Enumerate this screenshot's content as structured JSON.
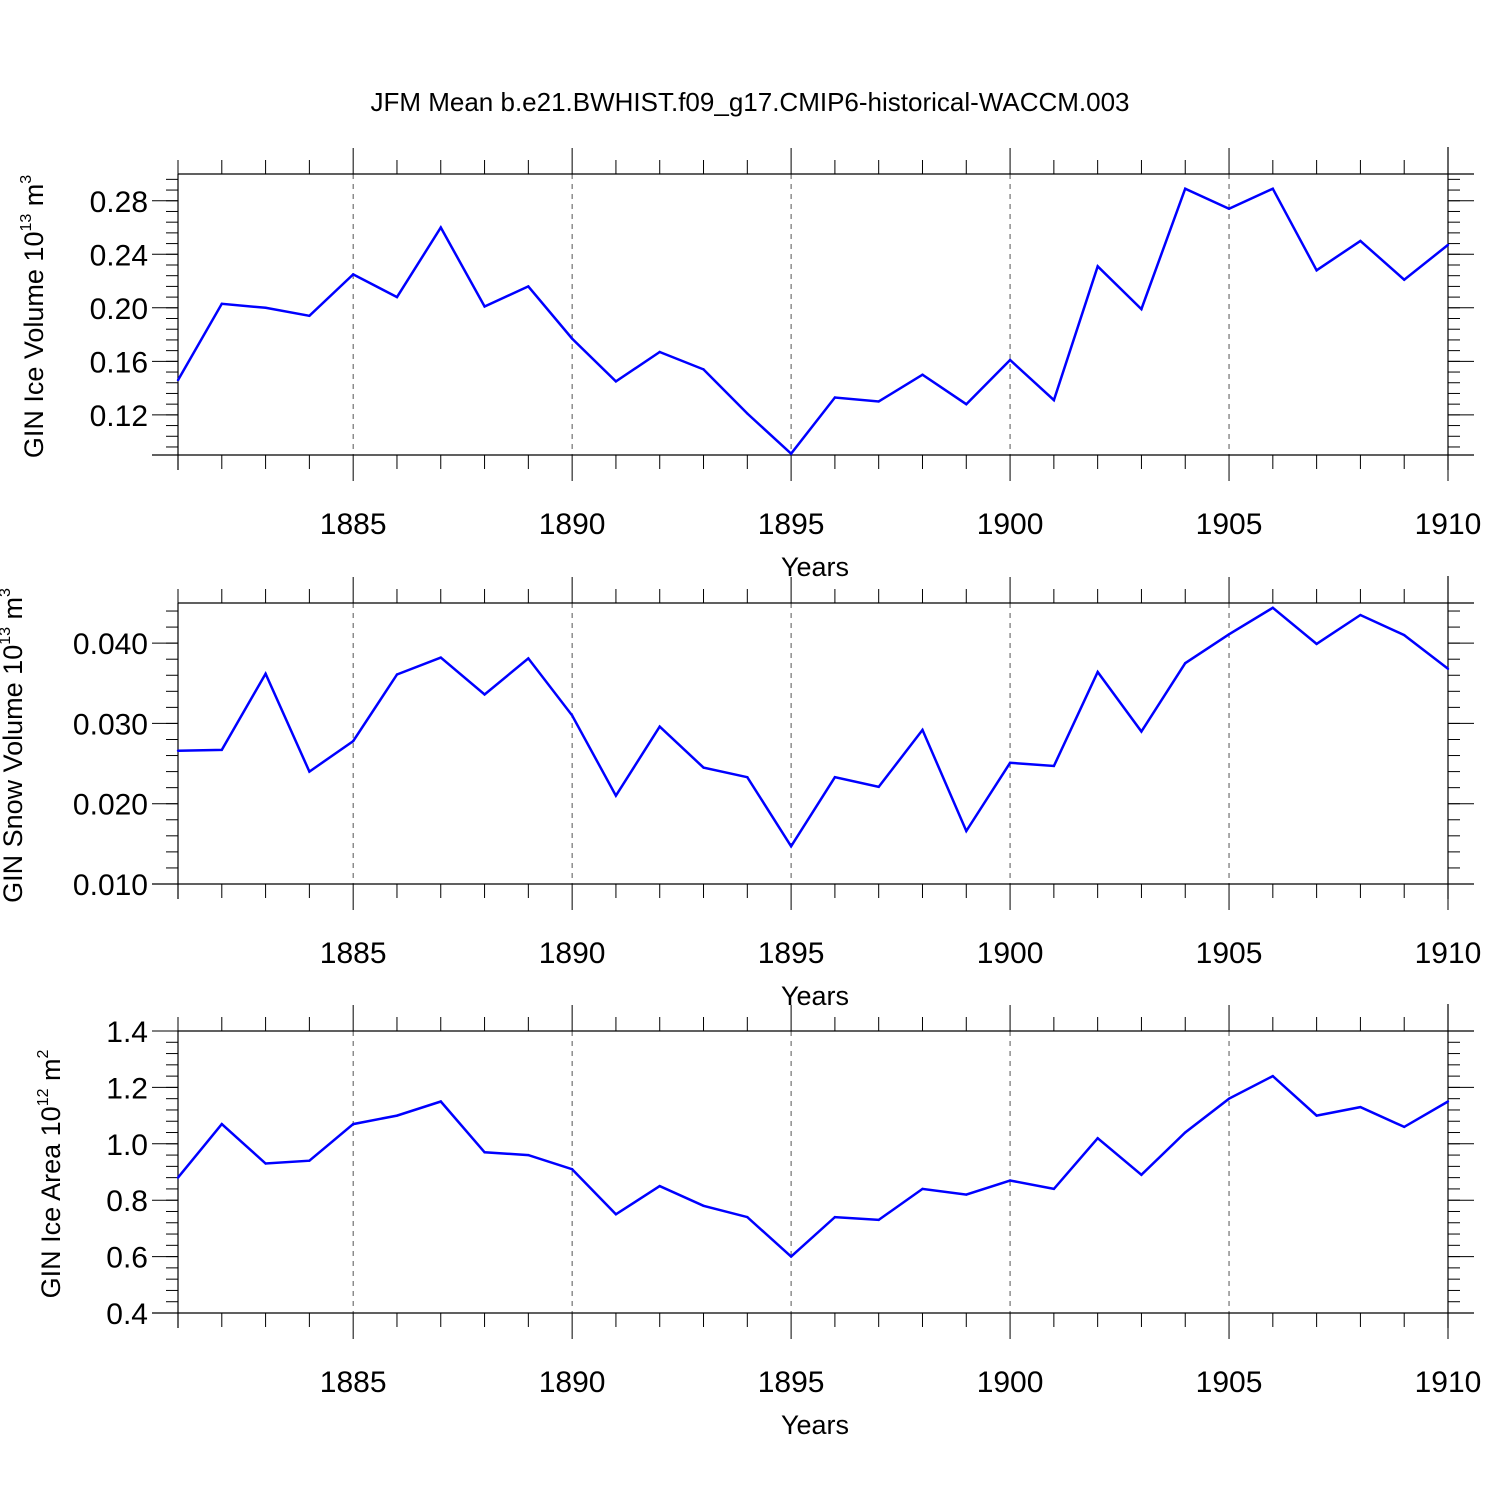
{
  "title": "JFM Mean b.e21.BWHIST.f09_g17.CMIP6-historical-WACCM.003",
  "colors": {
    "line": "#0000ff",
    "axis": "#000000",
    "grid": "#555555"
  },
  "chart_data": [
    {
      "type": "line",
      "ylabel": {
        "main": "GIN Ice Volume 10",
        "exponent": "13",
        "unit": " m",
        "unit_exp": "3"
      },
      "xlabel": "Years",
      "xlim": [
        1881,
        1910
      ],
      "ylim": [
        0.09,
        0.3
      ],
      "x_ticks": [
        1885,
        1890,
        1895,
        1900,
        1905,
        1910
      ],
      "y_ticks": [
        0.12,
        0.16,
        0.2,
        0.24,
        0.28
      ],
      "y_tick_labels": [
        "0.12",
        "0.16",
        "0.20",
        "0.24",
        "0.28"
      ],
      "grid": "vertical dashed at major x ticks",
      "x": [
        1881,
        1882,
        1883,
        1884,
        1885,
        1886,
        1887,
        1888,
        1889,
        1890,
        1891,
        1892,
        1893,
        1894,
        1895,
        1896,
        1897,
        1898,
        1899,
        1900,
        1901,
        1902,
        1903,
        1904,
        1905,
        1906,
        1907,
        1908,
        1909,
        1910
      ],
      "series": [
        {
          "values": [
            0.146,
            0.203,
            0.2,
            0.194,
            0.225,
            0.208,
            0.26,
            0.201,
            0.216,
            0.177,
            0.145,
            0.167,
            0.154,
            0.121,
            0.091,
            0.133,
            0.13,
            0.15,
            0.128,
            0.161,
            0.131,
            0.231,
            0.199,
            0.289,
            0.274,
            0.289,
            0.228,
            0.25,
            0.221,
            0.247
          ]
        }
      ]
    },
    {
      "type": "line",
      "ylabel": {
        "main": "GIN Snow Volume 10",
        "exponent": "13",
        "unit": " m",
        "unit_exp": "3"
      },
      "xlabel": "Years",
      "xlim": [
        1881,
        1910
      ],
      "ylim": [
        0.01,
        0.045
      ],
      "x_ticks": [
        1885,
        1890,
        1895,
        1900,
        1905,
        1910
      ],
      "y_ticks": [
        0.01,
        0.02,
        0.03,
        0.04
      ],
      "y_tick_labels": [
        "0.010",
        "0.020",
        "0.030",
        "0.040"
      ],
      "grid": "vertical dashed at major x ticks",
      "x": [
        1881,
        1882,
        1883,
        1884,
        1885,
        1886,
        1887,
        1888,
        1889,
        1890,
        1891,
        1892,
        1893,
        1894,
        1895,
        1896,
        1897,
        1898,
        1899,
        1900,
        1901,
        1902,
        1903,
        1904,
        1905,
        1906,
        1907,
        1908,
        1909,
        1910
      ],
      "series": [
        {
          "values": [
            0.0266,
            0.0267,
            0.0362,
            0.024,
            0.0278,
            0.0361,
            0.0382,
            0.0336,
            0.0381,
            0.031,
            0.021,
            0.0296,
            0.0245,
            0.0233,
            0.0147,
            0.0233,
            0.0221,
            0.0292,
            0.0166,
            0.0251,
            0.0247,
            0.0364,
            0.029,
            0.0375,
            0.0411,
            0.0444,
            0.0399,
            0.0435,
            0.041,
            0.0368
          ]
        }
      ]
    },
    {
      "type": "line",
      "ylabel": {
        "main": "GIN Ice Area 10",
        "exponent": "12",
        "unit": " m",
        "unit_exp": "2"
      },
      "xlabel": "Years",
      "xlim": [
        1881,
        1910
      ],
      "ylim": [
        0.4,
        1.4
      ],
      "x_ticks": [
        1885,
        1890,
        1895,
        1900,
        1905,
        1910
      ],
      "y_ticks": [
        0.4,
        0.6,
        0.8,
        1.0,
        1.2,
        1.4
      ],
      "y_tick_labels": [
        "0.4",
        "0.6",
        "0.8",
        "1.0",
        "1.2",
        "1.4"
      ],
      "grid": "vertical dashed at major x ticks",
      "x": [
        1881,
        1882,
        1883,
        1884,
        1885,
        1886,
        1887,
        1888,
        1889,
        1890,
        1891,
        1892,
        1893,
        1894,
        1895,
        1896,
        1897,
        1898,
        1899,
        1900,
        1901,
        1902,
        1903,
        1904,
        1905,
        1906,
        1907,
        1908,
        1909,
        1910
      ],
      "series": [
        {
          "values": [
            0.88,
            1.07,
            0.93,
            0.94,
            1.07,
            1.1,
            1.15,
            0.97,
            0.96,
            0.91,
            0.75,
            0.85,
            0.78,
            0.74,
            0.6,
            0.74,
            0.73,
            0.84,
            0.82,
            0.87,
            0.84,
            1.02,
            0.89,
            1.04,
            1.16,
            1.24,
            1.1,
            1.13,
            1.06,
            1.15
          ]
        }
      ]
    }
  ]
}
